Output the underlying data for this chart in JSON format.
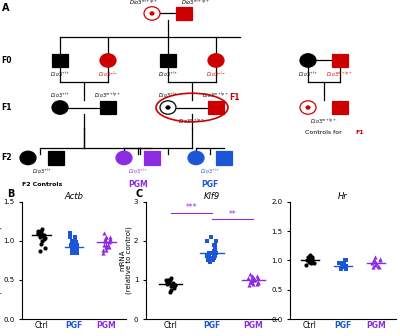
{
  "panel_B_title": "Actb",
  "panel_C_title": "Klf9",
  "panel_D_title": "Hr",
  "ylabel_BC": "mRNA\n(relative to control)",
  "xticklabels": [
    "Ctrl",
    "PGF",
    "PGM"
  ],
  "color_ctrl": "#000000",
  "color_PGF": "#1a56d6",
  "color_PGM": "#8b2be2",
  "color_red": "#cc0000",
  "actb_ctrl": [
    1.12,
    1.08,
    1.1,
    1.06,
    1.03,
    1.15,
    1.0,
    1.1,
    1.05,
    1.12,
    1.08,
    1.02,
    0.96,
    1.09,
    0.87,
    0.91
  ],
  "actb_PGF": [
    1.0,
    0.95,
    0.9,
    0.85,
    1.1,
    1.05,
    0.92,
    0.88,
    0.95,
    1.0,
    0.92,
    0.88,
    0.98,
    0.85,
    0.9,
    1.05,
    0.95,
    0.92,
    0.88,
    0.85
  ],
  "actb_PGM": [
    1.0,
    0.95,
    1.05,
    1.02,
    0.98,
    1.1,
    0.88,
    1.0,
    0.95,
    1.05,
    1.02,
    0.92,
    0.85,
    1.0,
    0.95,
    1.05,
    0.92,
    1.0,
    0.88,
    0.92
  ],
  "klf9_ctrl": [
    0.9,
    0.85,
    1.0,
    0.92,
    0.88,
    0.75,
    1.05,
    0.95,
    1.0,
    0.85,
    0.9,
    0.8,
    0.7,
    1.0,
    0.95,
    0.88
  ],
  "klf9_PGF": [
    1.5,
    1.7,
    2.0,
    1.8,
    1.6,
    1.9,
    2.1,
    1.7,
    1.55,
    1.65,
    1.45,
    1.75,
    1.85,
    1.6,
    1.9,
    2.0,
    1.5,
    1.65,
    1.7,
    1.55
  ],
  "klf9_PGM": [
    1.0,
    1.05,
    1.1,
    0.95,
    0.9,
    1.15,
    1.05,
    0.92,
    1.0,
    1.08,
    0.95,
    1.02,
    0.88,
    1.0,
    0.95,
    1.05,
    1.1,
    0.9,
    0.95,
    1.0
  ],
  "hr_ctrl": [
    1.0,
    1.05,
    0.98,
    1.02,
    0.95,
    1.0,
    1.08,
    0.92,
    1.05,
    1.1,
    0.95,
    1.0
  ],
  "hr_PGF": [
    0.95,
    0.9,
    1.0,
    0.85,
    0.95,
    1.0,
    0.9,
    0.88,
    0.92,
    0.95,
    0.85,
    0.9,
    1.0,
    0.88
  ],
  "hr_PGM": [
    1.0,
    0.95,
    1.05,
    1.0,
    0.88,
    1.0,
    0.95,
    1.02,
    0.9,
    0.95,
    1.0,
    0.92,
    0.88
  ],
  "actb_ylim": [
    0.0,
    1.5
  ],
  "actb_yticks": [
    0.0,
    0.5,
    1.0,
    1.5
  ],
  "klf9_ylim": [
    0.0,
    3.0
  ],
  "klf9_yticks": [
    0.0,
    1.0,
    2.0,
    3.0
  ],
  "hr_ylim": [
    0.0,
    2.0
  ],
  "hr_yticks": [
    0.0,
    0.5,
    1.0,
    1.5,
    2.0
  ]
}
